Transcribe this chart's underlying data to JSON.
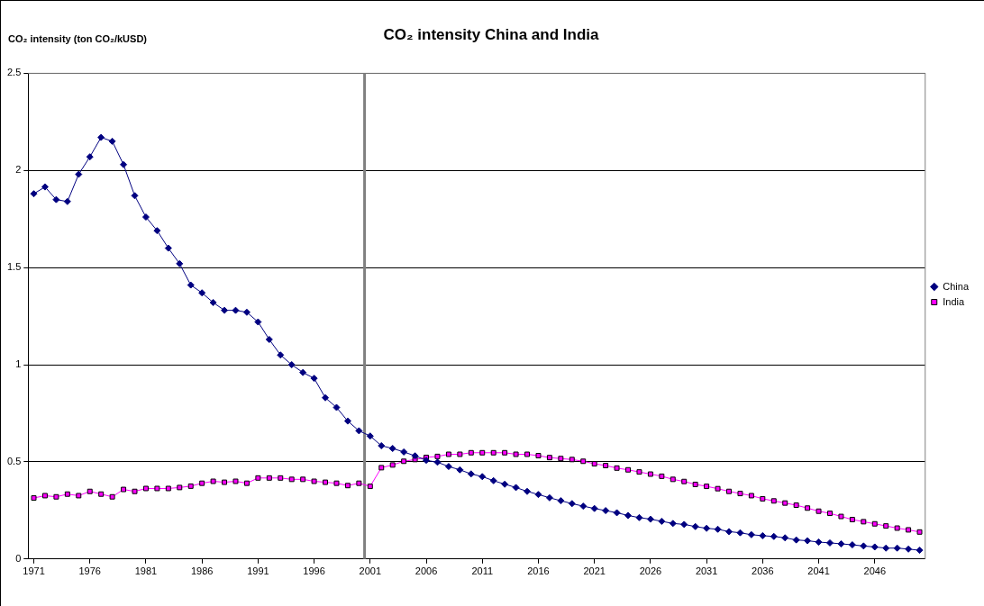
{
  "chart_data": {
    "type": "line",
    "title": "CO₂ intensity China and India",
    "ylabel": "CO₂ intensity (ton CO₂/kUSD)",
    "x": [
      1971,
      1972,
      1973,
      1974,
      1975,
      1976,
      1977,
      1978,
      1979,
      1980,
      1981,
      1982,
      1983,
      1984,
      1985,
      1986,
      1987,
      1988,
      1989,
      1990,
      1991,
      1992,
      1993,
      1994,
      1995,
      1996,
      1997,
      1998,
      1999,
      2000,
      2001,
      2002,
      2003,
      2004,
      2005,
      2006,
      2007,
      2008,
      2009,
      2010,
      2011,
      2012,
      2013,
      2014,
      2015,
      2016,
      2017,
      2018,
      2019,
      2020,
      2021,
      2022,
      2023,
      2024,
      2025,
      2026,
      2027,
      2028,
      2029,
      2030,
      2031,
      2032,
      2033,
      2034,
      2035,
      2036,
      2037,
      2038,
      2039,
      2040,
      2041,
      2042,
      2043,
      2044,
      2045,
      2046,
      2047,
      2048,
      2049,
      2050
    ],
    "series": [
      {
        "name": "China",
        "color": "#000080",
        "marker": "diamond",
        "values": [
          1.88,
          1.915,
          1.85,
          1.84,
          1.98,
          2.07,
          2.17,
          2.15,
          2.03,
          1.87,
          1.76,
          1.69,
          1.6,
          1.52,
          1.41,
          1.37,
          1.32,
          1.28,
          1.28,
          1.27,
          1.22,
          1.13,
          1.05,
          1.0,
          0.96,
          0.93,
          0.83,
          0.78,
          0.71,
          0.66,
          0.633,
          0.583,
          0.569,
          0.551,
          0.531,
          0.508,
          0.498,
          0.476,
          0.459,
          0.438,
          0.424,
          0.403,
          0.385,
          0.368,
          0.348,
          0.332,
          0.315,
          0.3,
          0.285,
          0.272,
          0.26,
          0.249,
          0.238,
          0.224,
          0.213,
          0.205,
          0.194,
          0.183,
          0.178,
          0.167,
          0.158,
          0.153,
          0.141,
          0.135,
          0.125,
          0.12,
          0.116,
          0.109,
          0.098,
          0.094,
          0.087,
          0.083,
          0.078,
          0.073,
          0.067,
          0.062,
          0.056,
          0.056,
          0.051,
          0.045
        ]
      },
      {
        "name": "India",
        "color": "#ff00ff",
        "marker": "square",
        "values": [
          0.314,
          0.326,
          0.32,
          0.334,
          0.326,
          0.348,
          0.334,
          0.32,
          0.358,
          0.348,
          0.363,
          0.363,
          0.363,
          0.368,
          0.375,
          0.39,
          0.4,
          0.395,
          0.4,
          0.39,
          0.417,
          0.417,
          0.417,
          0.41,
          0.41,
          0.4,
          0.395,
          0.39,
          0.378,
          0.39,
          0.374,
          0.47,
          0.484,
          0.503,
          0.512,
          0.523,
          0.528,
          0.539,
          0.539,
          0.547,
          0.547,
          0.547,
          0.547,
          0.539,
          0.539,
          0.532,
          0.522,
          0.517,
          0.512,
          0.503,
          0.49,
          0.481,
          0.468,
          0.459,
          0.448,
          0.437,
          0.426,
          0.41,
          0.399,
          0.384,
          0.374,
          0.362,
          0.348,
          0.337,
          0.326,
          0.31,
          0.299,
          0.288,
          0.277,
          0.262,
          0.246,
          0.235,
          0.219,
          0.203,
          0.192,
          0.181,
          0.17,
          0.159,
          0.15,
          0.139
        ]
      }
    ],
    "xlim": [
      1970.5,
      2050.5
    ],
    "xticks": [
      1971,
      1976,
      1981,
      1986,
      1991,
      1996,
      2001,
      2006,
      2011,
      2016,
      2021,
      2026,
      2031,
      2036,
      2041,
      2046
    ],
    "ylim": [
      0,
      2.5
    ],
    "yticks": [
      0,
      0.5,
      1,
      1.5,
      2,
      2.5
    ],
    "grid": "y",
    "legend": "right",
    "line_style": "solid",
    "ref_lines": [
      {
        "axis": "x",
        "value": 2000.5,
        "color": "#808080"
      }
    ]
  }
}
